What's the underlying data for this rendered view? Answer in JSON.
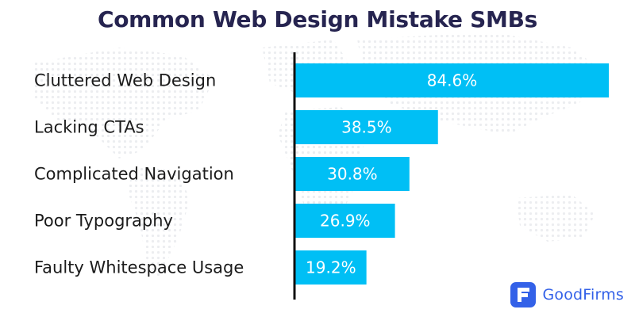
{
  "chart_data": {
    "type": "bar",
    "orientation": "horizontal",
    "title": "Common Web Design Mistake SMBs",
    "categories": [
      "Cluttered Web Design",
      "Lacking CTAs",
      "Complicated Navigation",
      "Poor Typography",
      "Faulty Whitespace Usage"
    ],
    "values": [
      84.6,
      38.5,
      30.8,
      26.9,
      19.2
    ],
    "value_labels": [
      "84.6%",
      "38.5%",
      "30.8%",
      "26.9%",
      "19.2%"
    ],
    "xlim": [
      0,
      85
    ],
    "grid": false,
    "bar_color": "#00bff5",
    "axis_color": "#111111"
  },
  "brand": {
    "name": "GoodFirms",
    "logo_color": "#3361e8"
  }
}
